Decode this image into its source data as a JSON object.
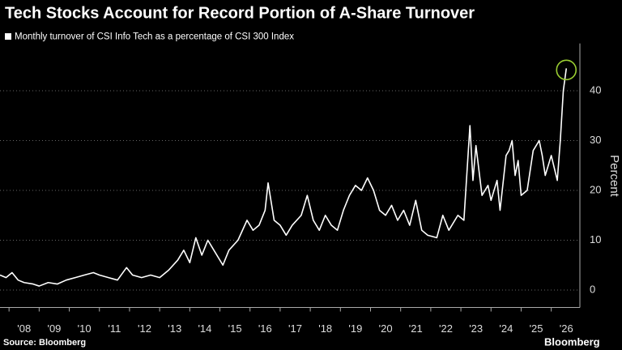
{
  "chart_data": {
    "type": "line",
    "title": "Tech Stocks Account for Record Portion of A-Share Turnover",
    "y_label": "Percent",
    "source": "Source: Bloomberg",
    "logo": "Bloomberg",
    "xlim": [
      2007.7,
      2026.95
    ],
    "xticks": [
      {
        "value": 2008,
        "label": "'08"
      },
      {
        "value": 2009,
        "label": "'09"
      },
      {
        "value": 2010,
        "label": "'10"
      },
      {
        "value": 2011,
        "label": "'11"
      },
      {
        "value": 2012,
        "label": "'12"
      },
      {
        "value": 2013,
        "label": "'13"
      },
      {
        "value": 2014,
        "label": "'14"
      },
      {
        "value": 2015,
        "label": "'15"
      },
      {
        "value": 2016,
        "label": "'16"
      },
      {
        "value": 2017,
        "label": "'17"
      },
      {
        "value": 2018,
        "label": "'18"
      },
      {
        "value": 2019,
        "label": "'19"
      },
      {
        "value": 2020,
        "label": "'20"
      },
      {
        "value": 2021,
        "label": "'21"
      },
      {
        "value": 2022,
        "label": "'22"
      },
      {
        "value": 2023,
        "label": "'23"
      },
      {
        "value": 2024,
        "label": "'24"
      },
      {
        "value": 2025,
        "label": "'25"
      },
      {
        "value": 2026,
        "label": "'26"
      }
    ],
    "ylim": [
      -3.5,
      49.5
    ],
    "yticks": [
      0,
      10,
      20,
      30,
      40
    ],
    "grid": true,
    "x": [
      2007.7,
      2007.9,
      2008.1,
      2008.3,
      2008.5,
      2008.8,
      2009.0,
      2009.3,
      2009.6,
      2009.9,
      2010.2,
      2010.5,
      2010.8,
      2011.0,
      2011.3,
      2011.6,
      2011.9,
      2012.1,
      2012.4,
      2012.7,
      2013.0,
      2013.3,
      2013.6,
      2013.8,
      2014.0,
      2014.2,
      2014.4,
      2014.6,
      2014.8,
      2015.1,
      2015.3,
      2015.6,
      2015.9,
      2016.1,
      2016.3,
      2016.5,
      2016.6,
      2016.8,
      2017.0,
      2017.2,
      2017.4,
      2017.7,
      2017.9,
      2018.1,
      2018.3,
      2018.5,
      2018.7,
      2018.9,
      2019.1,
      2019.3,
      2019.5,
      2019.7,
      2019.9,
      2020.1,
      2020.3,
      2020.5,
      2020.7,
      2020.9,
      2021.1,
      2021.3,
      2021.5,
      2021.7,
      2021.9,
      2022.2,
      2022.4,
      2022.6,
      2022.9,
      2023.1,
      2023.3,
      2023.4,
      2023.5,
      2023.7,
      2023.9,
      2024.0,
      2024.2,
      2024.3,
      2024.5,
      2024.6,
      2024.7,
      2024.8,
      2024.9,
      2025.0,
      2025.2,
      2025.4,
      2025.6,
      2025.7,
      2025.8,
      2025.9,
      2026.0,
      2026.2,
      2026.3,
      2026.4,
      2026.5
    ],
    "series": [
      {
        "name": "Monthly turnover of CSI Info Tech as a percentage of CSI 300 Index",
        "color": "#ffffff",
        "values": [
          3,
          2.5,
          3.5,
          2,
          1.5,
          1.2,
          0.8,
          1.5,
          1.2,
          2,
          2.5,
          3,
          3.5,
          3,
          2.5,
          2,
          4.5,
          3,
          2.5,
          3,
          2.5,
          4,
          6,
          8,
          5.5,
          10.5,
          7,
          10,
          8,
          5,
          8,
          10,
          14,
          12,
          13,
          16,
          21.5,
          14,
          13,
          11,
          13,
          15,
          19,
          14,
          12,
          15,
          13,
          12,
          16,
          19,
          21,
          20,
          22.5,
          20,
          16,
          15,
          17,
          14,
          16,
          13,
          18,
          12,
          11,
          10.5,
          15,
          12,
          15,
          14,
          33,
          22,
          29,
          19,
          21,
          18,
          22,
          16,
          27,
          28,
          30,
          23,
          26,
          19,
          20,
          28,
          30,
          27,
          23,
          25,
          27,
          22,
          30,
          40,
          44.5
        ]
      }
    ]
  }
}
